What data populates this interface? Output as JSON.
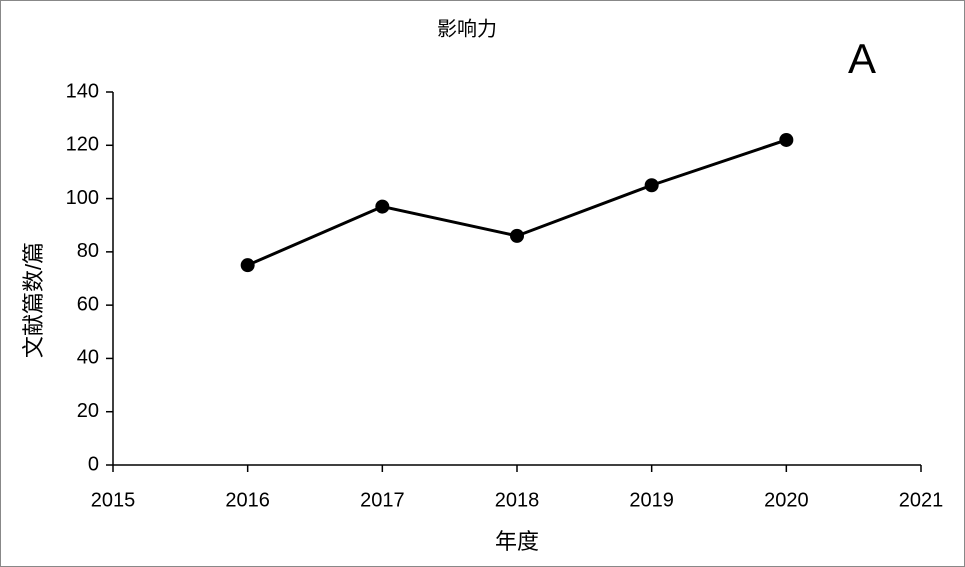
{
  "chart_data": {
    "type": "line",
    "title": "影响力",
    "annotation": "A",
    "x_label": "年度",
    "y_label": "文献篇数/篇",
    "x": [
      2016,
      2017,
      2018,
      2019,
      2020
    ],
    "series": [
      {
        "name": "影响力",
        "color": "#000000",
        "values": [
          75,
          97,
          86,
          105,
          122
        ]
      }
    ],
    "xlim": [
      2015,
      2021
    ],
    "xticks": [
      2015,
      2016,
      2017,
      2018,
      2019,
      2020,
      2021
    ],
    "ylim": [
      0,
      140
    ],
    "yticks": [
      0,
      20,
      40,
      60,
      80,
      100,
      120,
      140
    ],
    "grid": false
  }
}
